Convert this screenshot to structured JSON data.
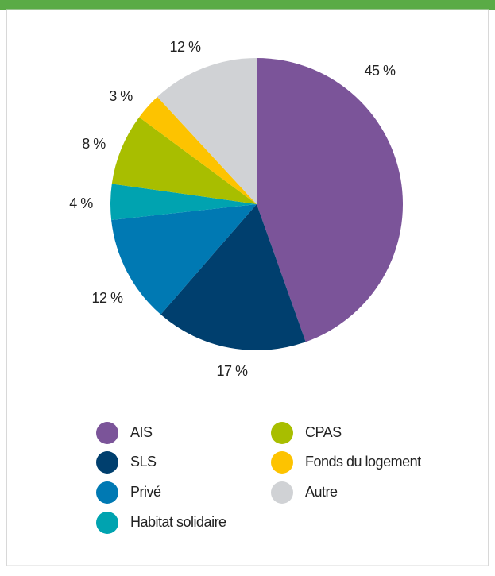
{
  "chart_data": {
    "type": "pie",
    "categories": [
      "AIS",
      "SLS",
      "Privé",
      "Habitat solidaire",
      "CPAS",
      "Fonds du logement",
      "Autre"
    ],
    "values": [
      45,
      17,
      12,
      4,
      8,
      3,
      12
    ],
    "value_labels": [
      "45 %",
      "17 %",
      "12 %",
      "4 %",
      "8 %",
      "3 %",
      "12 %"
    ],
    "colors": [
      "#7b5499",
      "#003f6e",
      "#0079b3",
      "#00a3b0",
      "#a8be00",
      "#fdc300",
      "#d0d2d5"
    ],
    "legend": "bottom"
  }
}
